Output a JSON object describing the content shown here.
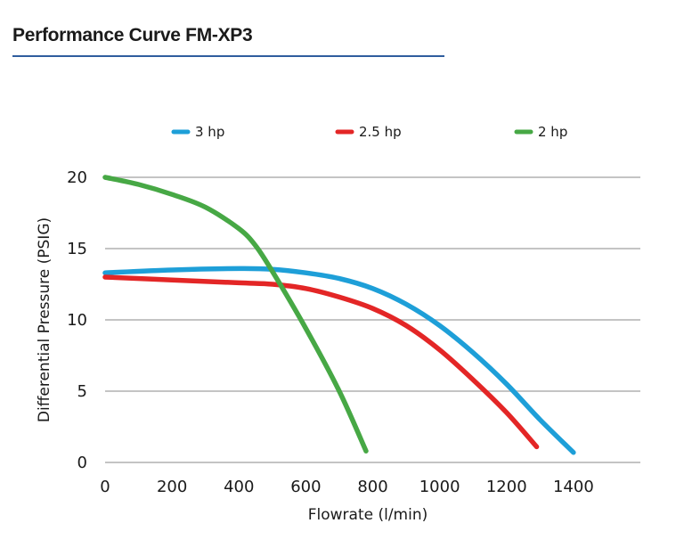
{
  "chart_data": {
    "type": "line",
    "title": "Performance Curve FM-XP3",
    "xlabel": "Flowrate  (l/min)",
    "ylabel": "Differential Pressure (PSIG)",
    "xlim": [
      0,
      1600
    ],
    "ylim": [
      0,
      20
    ],
    "xticks": [
      0,
      200,
      400,
      600,
      800,
      1000,
      1200,
      1400
    ],
    "yticks": [
      0,
      5,
      10,
      15,
      20
    ],
    "grid": "horizontal",
    "legend_position": "top",
    "series": [
      {
        "name": "3 hp",
        "color": "#1e9fd8",
        "points": [
          [
            0,
            13.3
          ],
          [
            200,
            13.5
          ],
          [
            400,
            13.6
          ],
          [
            500,
            13.55
          ],
          [
            600,
            13.3
          ],
          [
            700,
            12.9
          ],
          [
            800,
            12.2
          ],
          [
            900,
            11.1
          ],
          [
            1000,
            9.6
          ],
          [
            1100,
            7.7
          ],
          [
            1200,
            5.5
          ],
          [
            1300,
            3.0
          ],
          [
            1400,
            0.7
          ]
        ]
      },
      {
        "name": "2.5 hp",
        "color": "#e32626",
        "points": [
          [
            0,
            13.0
          ],
          [
            200,
            12.8
          ],
          [
            400,
            12.6
          ],
          [
            500,
            12.5
          ],
          [
            600,
            12.2
          ],
          [
            700,
            11.6
          ],
          [
            800,
            10.8
          ],
          [
            900,
            9.6
          ],
          [
            1000,
            7.9
          ],
          [
            1100,
            5.8
          ],
          [
            1200,
            3.5
          ],
          [
            1290,
            1.1
          ]
        ]
      },
      {
        "name": "2 hp",
        "color": "#47a845",
        "points": [
          [
            0,
            20.0
          ],
          [
            100,
            19.5
          ],
          [
            200,
            18.8
          ],
          [
            300,
            17.9
          ],
          [
            400,
            16.4
          ],
          [
            450,
            15.2
          ],
          [
            500,
            13.4
          ],
          [
            600,
            9.4
          ],
          [
            700,
            5.0
          ],
          [
            780,
            0.8
          ]
        ]
      }
    ]
  }
}
